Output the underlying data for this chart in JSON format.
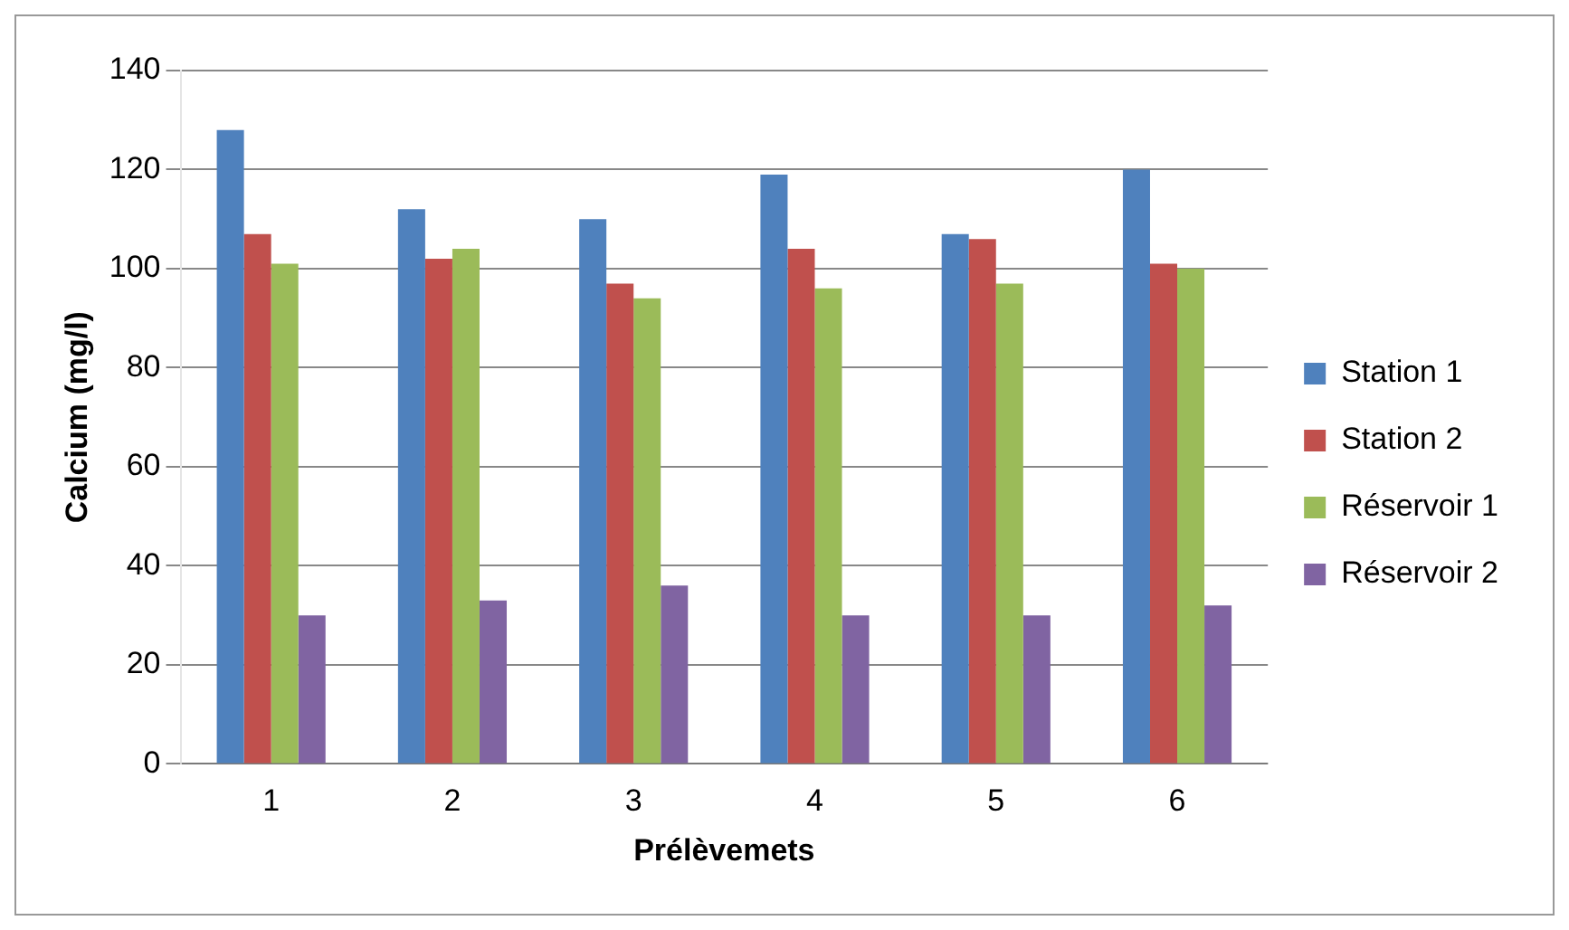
{
  "chart_data": {
    "type": "bar",
    "xlabel": "Prélèvemets",
    "ylabel": "Calcium (mg/l)",
    "categories": [
      "1",
      "2",
      "3",
      "4",
      "5",
      "6"
    ],
    "series": [
      {
        "name": "Station 1",
        "color": "#4f81bd",
        "values": [
          128,
          112,
          110,
          119,
          107,
          120
        ]
      },
      {
        "name": "Station 2",
        "color": "#c0504d",
        "values": [
          107,
          102,
          97,
          104,
          106,
          101
        ]
      },
      {
        "name": "Réservoir 1",
        "color": "#9bbb59",
        "values": [
          101,
          104,
          94,
          96,
          97,
          100
        ]
      },
      {
        "name": "Réservoir 2",
        "color": "#8064a2",
        "values": [
          30,
          33,
          36,
          30,
          30,
          32
        ]
      }
    ],
    "ylim": [
      0,
      140
    ],
    "yticks": [
      0,
      20,
      40,
      60,
      80,
      100,
      120,
      140
    ],
    "grid": "y",
    "legend": "right"
  }
}
